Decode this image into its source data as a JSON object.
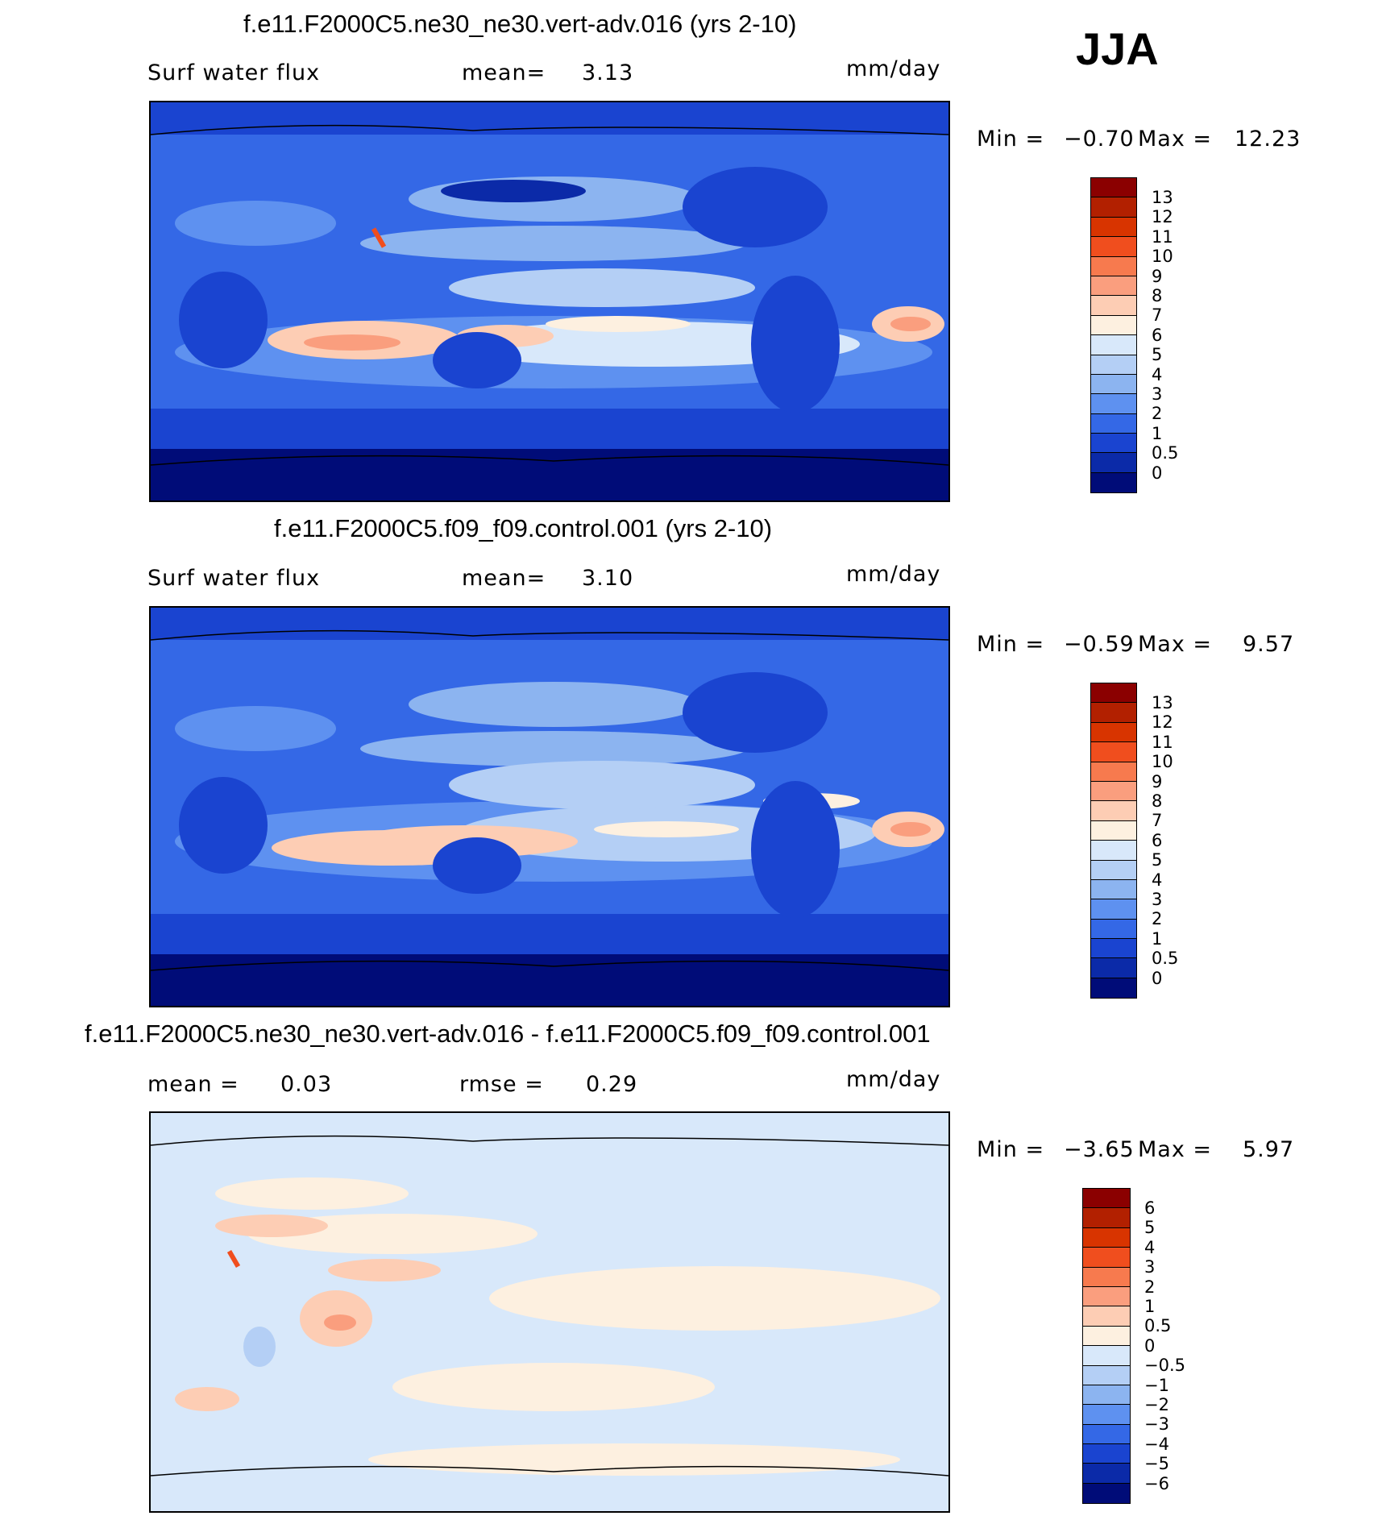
{
  "season": "JJA",
  "panels": [
    {
      "title": "f.e11.F2000C5.ne30_ne30.vert-adv.016 (yrs 2-10)",
      "left_label": "Surf water flux",
      "stat1_label": "mean=",
      "stat1_value": "3.13",
      "stat2_label": "",
      "stat2_value": "",
      "units": "mm/day",
      "min_label": "Min =",
      "min_value": "−0.70",
      "max_label": "Max =",
      "max_value": "12.23"
    },
    {
      "title": "f.e11.F2000C5.f09_f09.control.001 (yrs 2-10)",
      "left_label": "Surf water flux",
      "stat1_label": "mean=",
      "stat1_value": "3.10",
      "stat2_label": "",
      "stat2_value": "",
      "units": "mm/day",
      "min_label": "Min =",
      "min_value": "−0.59",
      "max_label": "Max =",
      "max_value": "9.57"
    },
    {
      "title": "f.e11.F2000C5.ne30_ne30.vert-adv.016 - f.e11.F2000C5.f09_f09.control.001",
      "left_label": "mean =",
      "left_value": "0.03",
      "stat2_label": "rmse =",
      "stat2_value": "0.29",
      "units": "mm/day",
      "min_label": "Min =",
      "min_value": "−3.65",
      "max_label": "Max =",
      "max_value": "5.97"
    }
  ],
  "colorbar_abs": {
    "labels": [
      "13",
      "12",
      "11",
      "10",
      "9",
      "8",
      "7",
      "6",
      "5",
      "4",
      "3",
      "2",
      "1",
      "0.5",
      "0"
    ],
    "colors": [
      "#8b0000",
      "#b22000",
      "#d83400",
      "#f04e1e",
      "#f77a4e",
      "#fa9e7e",
      "#fdcdb4",
      "#fdf0e0",
      "#d8e8fa",
      "#b4cff5",
      "#8cb4f0",
      "#5e91f0",
      "#3468e6",
      "#1a44d0",
      "#0b2aa8",
      "#000c78"
    ]
  },
  "colorbar_diff": {
    "labels": [
      "6",
      "5",
      "4",
      "3",
      "2",
      "1",
      "0.5",
      "0",
      "−0.5",
      "−1",
      "−2",
      "−3",
      "−4",
      "−5",
      "−6"
    ],
    "colors": [
      "#8b0000",
      "#b22000",
      "#d83400",
      "#f04e1e",
      "#f77a4e",
      "#fa9e7e",
      "#fdcdb4",
      "#fdf0e0",
      "#d8e8fa",
      "#b4cff5",
      "#8cb4f0",
      "#5e91f0",
      "#3468e6",
      "#1a44d0",
      "#0b2aa8",
      "#000c78"
    ]
  }
}
